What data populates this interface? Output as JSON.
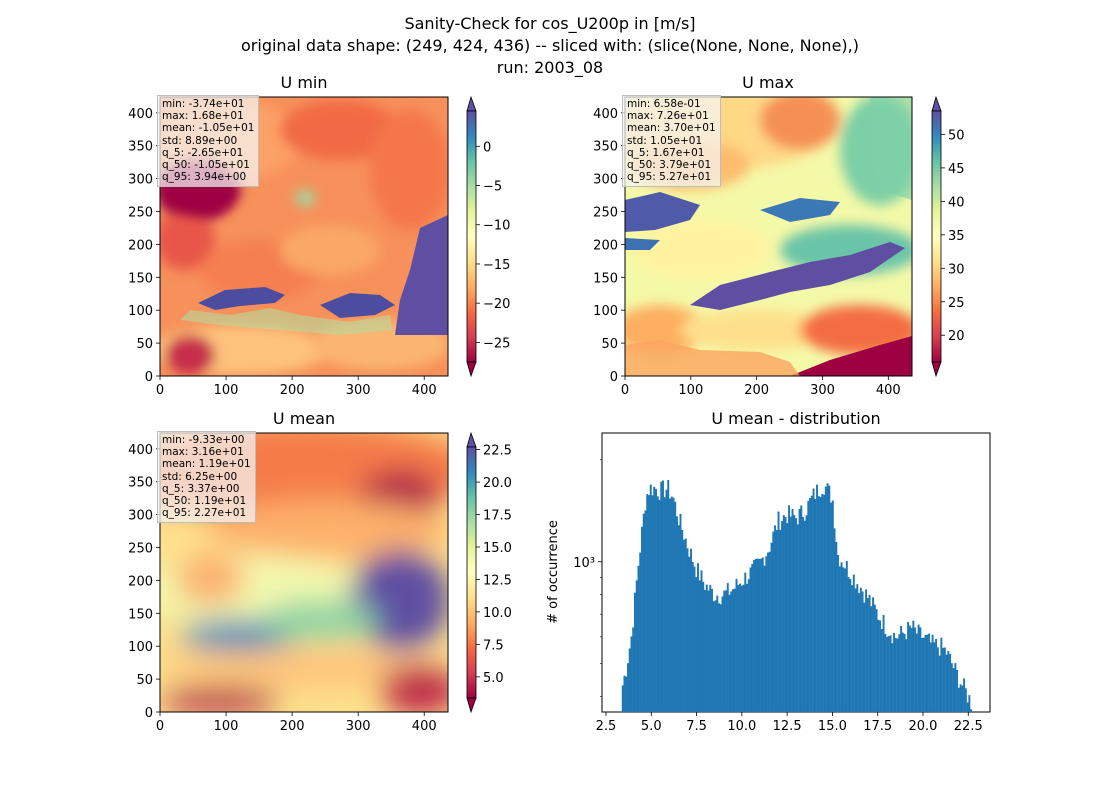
{
  "figure": {
    "title_lines": [
      "Sanity-Check for cos_U200p in [m/s]",
      "original data shape: (249, 424, 436) -- sliced with: (slice(None, None, None),)",
      "run: 2003_08"
    ]
  },
  "chart_data": [
    {
      "type": "heatmap",
      "title": "U min",
      "xlim": [
        0,
        436
      ],
      "ylim": [
        0,
        424
      ],
      "xticks": [
        "0",
        "100",
        "200",
        "300",
        "400"
      ],
      "yticks": [
        "0",
        "50",
        "100",
        "150",
        "200",
        "250",
        "300",
        "350",
        "400"
      ],
      "colormap": "Spectral",
      "colorbar": {
        "range": [
          -27.5,
          4.5
        ],
        "ticks": [
          "0",
          "−5",
          "−10",
          "−15",
          "−20",
          "−25"
        ],
        "extend": "both"
      },
      "stats": [
        "min: -3.74e+01",
        "max: 1.68e+01",
        "mean: -1.05e+01",
        "std: 8.89e+00",
        "q_5: -2.65e+01",
        "q_50: -1.05e+01",
        "q_95: 3.94e+00"
      ]
    },
    {
      "type": "heatmap",
      "title": "U max",
      "xlim": [
        0,
        436
      ],
      "ylim": [
        0,
        424
      ],
      "xticks": [
        "0",
        "100",
        "200",
        "300",
        "400"
      ],
      "yticks": [
        "0",
        "50",
        "100",
        "150",
        "200",
        "250",
        "300",
        "350",
        "400"
      ],
      "colormap": "Spectral",
      "colorbar": {
        "range": [
          16.0,
          53.5
        ],
        "ticks": [
          "20",
          "25",
          "30",
          "35",
          "40",
          "45",
          "50"
        ],
        "extend": "both"
      },
      "stats": [
        "min: 6.58e-01",
        "max: 7.26e+01",
        "mean: 3.70e+01",
        "std: 1.05e+01",
        "q_5: 1.67e+01",
        "q_50: 3.79e+01",
        "q_95: 5.27e+01"
      ]
    },
    {
      "type": "heatmap",
      "title": "U mean",
      "xlim": [
        0,
        436
      ],
      "ylim": [
        0,
        424
      ],
      "xticks": [
        "0",
        "100",
        "200",
        "300",
        "400"
      ],
      "yticks": [
        "0",
        "50",
        "100",
        "150",
        "200",
        "250",
        "300",
        "350",
        "400"
      ],
      "colormap": "Spectral",
      "colorbar": {
        "range": [
          3.37,
          22.7
        ],
        "ticks": [
          "5.0",
          "7.5",
          "10.0",
          "12.5",
          "15.0",
          "17.5",
          "20.0",
          "22.5"
        ],
        "extend": "both"
      },
      "stats": [
        "min: -9.33e+00",
        "max: 3.16e+01",
        "mean: 1.19e+01",
        "std: 6.25e+00",
        "q_5: 3.37e+00",
        "q_50: 1.19e+01",
        "q_95: 2.27e+01"
      ]
    },
    {
      "type": "bar",
      "title": "U mean - distribution",
      "ylabel": "# of occurrence",
      "yscale": "log",
      "xlim": [
        2.28,
        23.7
      ],
      "ylim": [
        360,
        2400
      ],
      "xticks": [
        "2.5",
        "5.0",
        "7.5",
        "10.0",
        "12.5",
        "15.0",
        "17.5",
        "20.0",
        "22.5"
      ],
      "ytick_label": "10³",
      "color": "#1f77b4",
      "bins": [
        3.37,
        22.7
      ],
      "profile_x": [
        3.37,
        3.6,
        3.9,
        4.3,
        4.7,
        4.9,
        5.2,
        5.5,
        5.9,
        6.2,
        6.5,
        7.0,
        7.5,
        8.0,
        8.5,
        9.0,
        9.5,
        10.0,
        10.5,
        11.0,
        11.5,
        12.0,
        12.5,
        13.0,
        13.5,
        14.0,
        14.5,
        15.0,
        15.3,
        15.6,
        16.0,
        16.5,
        17.0,
        17.5,
        18.0,
        18.5,
        19.0,
        19.4,
        19.6,
        20.0,
        20.5,
        21.0,
        21.3,
        21.6,
        22.0,
        22.3,
        22.7
      ],
      "profile_y": [
        420,
        480,
        600,
        1000,
        1550,
        1650,
        1650,
        1620,
        1650,
        1550,
        1350,
        1120,
        950,
        850,
        800,
        800,
        830,
        880,
        930,
        990,
        1100,
        1320,
        1380,
        1350,
        1420,
        1580,
        1700,
        1550,
        1050,
        1000,
        930,
        850,
        780,
        700,
        640,
        600,
        620,
        640,
        620,
        600,
        570,
        560,
        540,
        500,
        450,
        420,
        380
      ]
    }
  ]
}
